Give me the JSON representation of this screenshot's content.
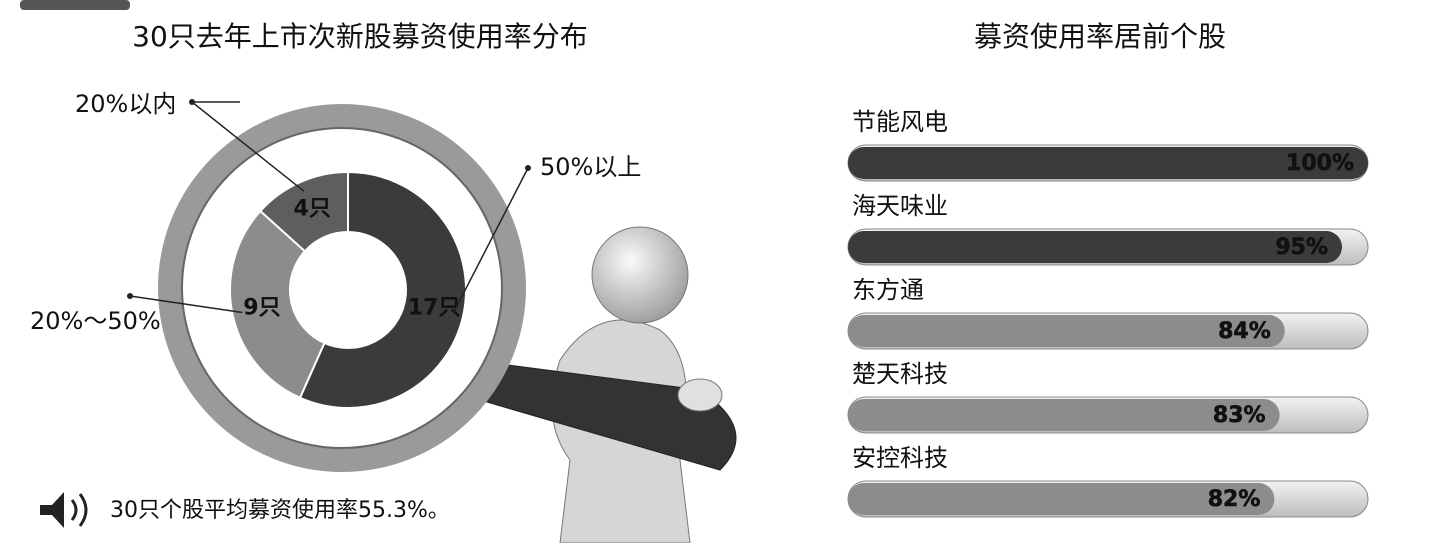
{
  "chart_data": [
    {
      "type": "donut",
      "title": "30只去年上市次新股募资使用率分布",
      "categories": [
        "50%以上",
        "20%～50%",
        "20%以内"
      ],
      "values": [
        17,
        9,
        4
      ],
      "value_labels": [
        "17只",
        "9只",
        "4只"
      ],
      "colors": [
        "#3b3b3b",
        "#8c8c8c",
        "#5e5e5e"
      ],
      "note": "30只个股平均募资使用率55.3%。"
    },
    {
      "type": "bar",
      "title": "募资使用率居前个股",
      "categories": [
        "节能风电",
        "海天味业",
        "东方通",
        "楚天科技",
        "安控科技"
      ],
      "values": [
        100,
        95,
        84,
        83,
        82
      ],
      "value_labels": [
        "100%",
        "95%",
        "84%",
        "83%",
        "82%"
      ],
      "colors": [
        "#3b3b3b",
        "#3b3b3b",
        "#8c8c8c",
        "#8c8c8c",
        "#8c8c8c"
      ],
      "xlim": [
        0,
        100
      ]
    }
  ]
}
